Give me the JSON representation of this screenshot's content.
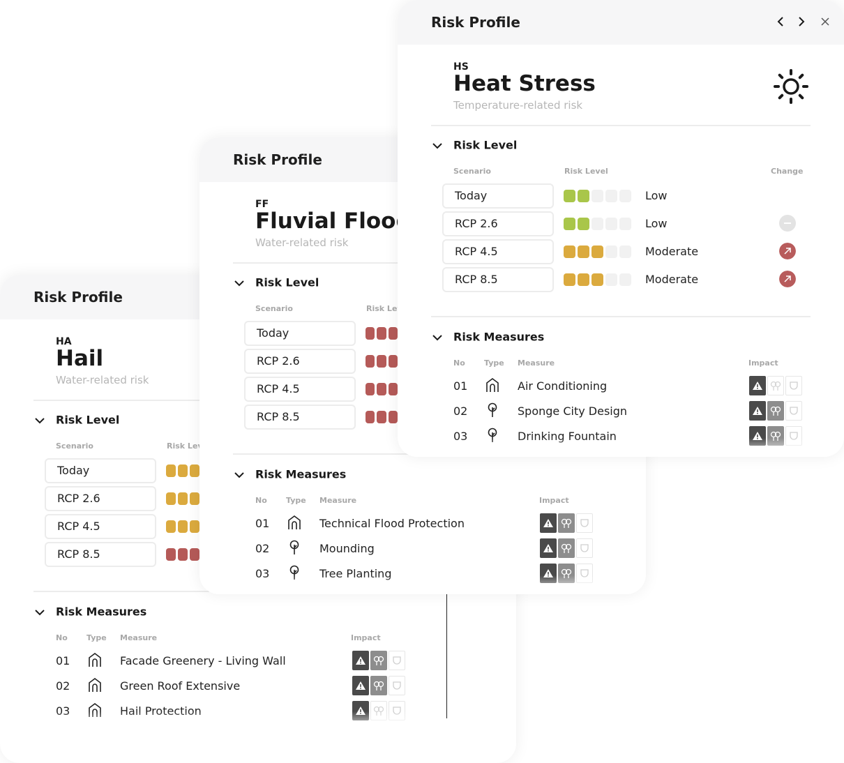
{
  "colors": {
    "low": "#a9c64a",
    "moderate": "#dbaa3e",
    "high": "#b55a58",
    "empty": "#f1f1f1"
  },
  "panels": [
    {
      "header_title": "Risk Profile",
      "code": "HA",
      "name": "Hail",
      "category": "Water-related risk",
      "risk_level": {
        "section": "Risk Level",
        "col_scenario": "Scenario",
        "col_level": "Risk Lev",
        "rows": [
          {
            "scenario": "Today",
            "level_color": "moderate"
          },
          {
            "scenario": "RCP 2.6",
            "level_color": "moderate"
          },
          {
            "scenario": "RCP 4.5",
            "level_color": "moderate"
          },
          {
            "scenario": "RCP 8.5",
            "level_color": "high"
          }
        ]
      },
      "measures": {
        "section": "Risk Measures",
        "col_no": "No",
        "col_type": "Type",
        "col_measure": "Measure",
        "col_impact": "Impact",
        "rows": [
          {
            "no": "01",
            "type": "home-icon",
            "measure": "Facade Greenery - Living Wall",
            "impact": [
              "dark",
              "mid",
              "light"
            ]
          },
          {
            "no": "02",
            "type": "home-icon",
            "measure": "Green Roof Extensive",
            "impact": [
              "dark",
              "mid",
              "light"
            ]
          },
          {
            "no": "03",
            "type": "home-icon",
            "measure": "Hail Protection",
            "impact": [
              "dark",
              "light",
              "light"
            ]
          }
        ]
      }
    },
    {
      "header_title": "Risk Profile",
      "code": "FF",
      "name": "Fluvial Flood",
      "category": "Water-related risk",
      "risk_level": {
        "section": "Risk Level",
        "col_scenario": "Scenario",
        "col_level": "Risk Lev",
        "rows": [
          {
            "scenario": "Today",
            "level_color": "high"
          },
          {
            "scenario": "RCP 2.6",
            "level_color": "high"
          },
          {
            "scenario": "RCP 4.5",
            "level_color": "high"
          },
          {
            "scenario": "RCP 8.5",
            "level_color": "high"
          }
        ]
      },
      "measures": {
        "section": "Risk Measures",
        "col_no": "No",
        "col_type": "Type",
        "col_measure": "Measure",
        "col_impact": "Impact",
        "rows": [
          {
            "no": "01",
            "type": "home-icon",
            "measure": "Technical Flood Protection",
            "impact": [
              "dark",
              "mid",
              "light"
            ]
          },
          {
            "no": "02",
            "type": "tree-icon",
            "measure": "Mounding",
            "impact": [
              "dark",
              "mid",
              "light"
            ]
          },
          {
            "no": "03",
            "type": "tree-icon",
            "measure": "Tree Planting",
            "impact": [
              "dark",
              "mid",
              "light"
            ]
          }
        ]
      }
    },
    {
      "header_title": "Risk Profile",
      "code": "HS",
      "name": "Heat Stress",
      "category": "Temperature-related risk",
      "icon": "sun-icon",
      "risk_level": {
        "section": "Risk Level",
        "col_scenario": "Scenario",
        "col_level": "Risk Level",
        "col_change": "Change",
        "rows": [
          {
            "scenario": "Today",
            "segments_filled": 2,
            "level_color": "low",
            "level": "Low",
            "change": "none"
          },
          {
            "scenario": "RCP 2.6",
            "segments_filled": 2,
            "level_color": "low",
            "level": "Low",
            "change": "neutral"
          },
          {
            "scenario": "RCP 4.5",
            "segments_filled": 3,
            "level_color": "moderate",
            "level": "Moderate",
            "change": "up"
          },
          {
            "scenario": "RCP 8.5",
            "segments_filled": 3,
            "level_color": "moderate",
            "level": "Moderate",
            "change": "up"
          }
        ]
      },
      "measures": {
        "section": "Risk Measures",
        "col_no": "No",
        "col_type": "Type",
        "col_measure": "Measure",
        "col_impact": "Impact",
        "rows": [
          {
            "no": "01",
            "type": "home-icon",
            "measure": "Air Conditioning",
            "impact": [
              "dark",
              "light",
              "light"
            ]
          },
          {
            "no": "02",
            "type": "tree-icon",
            "measure": "Sponge City Design",
            "impact": [
              "dark",
              "mid",
              "light"
            ]
          },
          {
            "no": "03",
            "type": "tree-icon",
            "measure": "Drinking Fountain",
            "impact": [
              "dark",
              "mid",
              "light"
            ]
          }
        ]
      }
    }
  ]
}
